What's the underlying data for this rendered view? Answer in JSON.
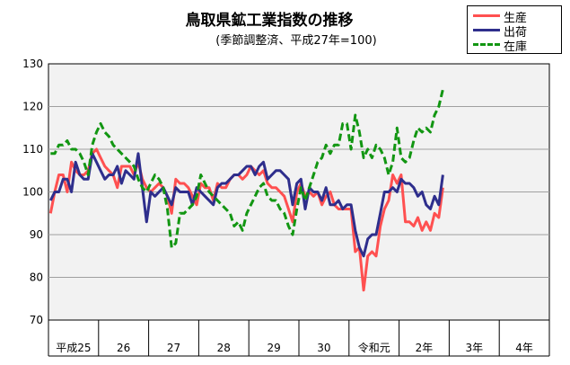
{
  "chart_data": {
    "type": "line",
    "title": "鳥取県鉱工業指数の推移",
    "subtitle": "(季節調整済、平成27年=100)",
    "ylim": [
      70,
      130
    ],
    "yticks": [
      70,
      80,
      90,
      100,
      110,
      120,
      130
    ],
    "x_group_labels": [
      "平成25",
      "26",
      "27",
      "28",
      "29",
      "30",
      "令和元",
      "2年",
      "3年",
      "4年"
    ],
    "grid": true,
    "legend_position": "top-right",
    "series": [
      {
        "name": "生産",
        "color": "#ff5050",
        "dash": "solid",
        "values": [
          95,
          100,
          104,
          104,
          100,
          107,
          105,
          104,
          104,
          105,
          109,
          110,
          108,
          106,
          105,
          104,
          101,
          106,
          106,
          106,
          104,
          107,
          103,
          101,
          100,
          101,
          102,
          101,
          99,
          95,
          103,
          102,
          102,
          101,
          99,
          97,
          102,
          101,
          101,
          98,
          102,
          101,
          101,
          103,
          104,
          104,
          103,
          104,
          106,
          105,
          104,
          105,
          102,
          101,
          101,
          100,
          99,
          96,
          93,
          100,
          102,
          99,
          100,
          99,
          100,
          97,
          99,
          100,
          97,
          96,
          96,
          96,
          96,
          86,
          87,
          77,
          85,
          86,
          85,
          92,
          96,
          98,
          104,
          102,
          104,
          93,
          93,
          92,
          94,
          91,
          93,
          91,
          95,
          94,
          101
        ]
      },
      {
        "name": "出荷",
        "color": "#2e2e8c",
        "dash": "solid",
        "values": [
          98,
          100,
          100,
          103,
          103,
          100,
          107,
          104,
          103,
          103,
          109,
          107,
          105,
          103,
          104,
          104,
          106,
          102,
          105,
          104,
          103,
          109,
          101,
          93,
          100,
          99,
          100,
          101,
          99,
          97,
          101,
          100,
          100,
          100,
          97,
          101,
          100,
          99,
          98,
          97,
          101,
          102,
          102,
          103,
          104,
          104,
          105,
          106,
          106,
          104,
          106,
          107,
          103,
          104,
          105,
          105,
          104,
          103,
          97,
          102,
          103,
          96,
          101,
          100,
          100,
          98,
          101,
          97,
          97,
          98,
          96,
          97,
          97,
          91,
          87,
          85,
          89,
          90,
          90,
          95,
          100,
          100,
          101,
          100,
          103,
          102,
          102,
          101,
          99,
          100,
          97,
          96,
          99,
          97,
          104
        ]
      },
      {
        "name": "在庫",
        "color": "#129612",
        "dash": "dashed",
        "values": [
          109,
          109,
          111,
          111,
          112,
          110,
          110,
          109,
          107,
          104,
          111,
          114,
          116,
          114,
          113,
          111,
          110,
          109,
          108,
          107,
          106,
          103,
          101,
          100,
          102,
          104,
          103,
          101,
          96,
          87,
          88,
          95,
          95,
          96,
          97,
          99,
          104,
          102,
          100,
          99,
          98,
          97,
          96,
          95,
          92,
          93,
          91,
          95,
          97,
          99,
          101,
          102,
          99,
          98,
          98,
          96,
          95,
          92,
          90,
          96,
          101,
          98,
          101,
          104,
          107,
          108,
          111,
          109,
          111,
          111,
          116,
          116,
          110,
          118,
          114,
          108,
          110,
          108,
          111,
          110,
          108,
          104,
          107,
          115,
          108,
          107,
          108,
          112,
          115,
          114,
          115,
          114,
          118,
          120,
          124
        ]
      }
    ]
  }
}
